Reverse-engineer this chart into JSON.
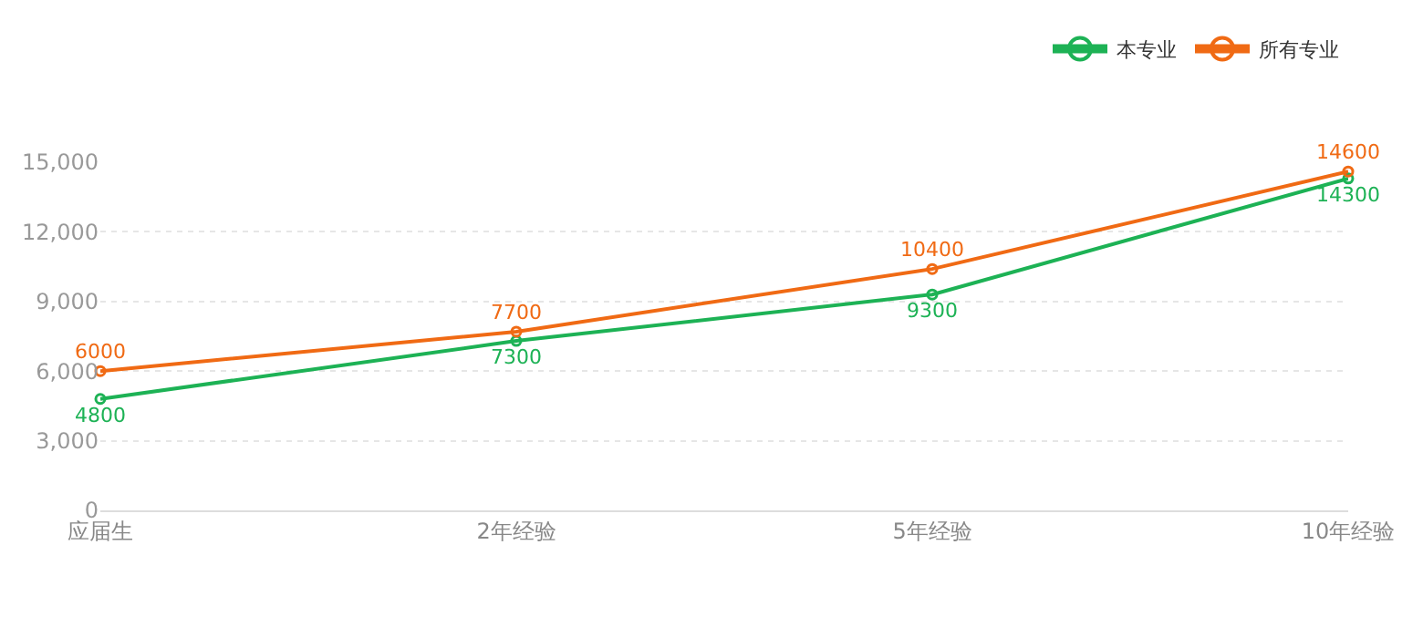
{
  "chart_data": {
    "type": "line",
    "categories": [
      "应届生",
      "2年经验",
      "5年经验",
      "10年经验"
    ],
    "series": [
      {
        "name": "本专业",
        "color": "#1db255",
        "values": [
          4800,
          7300,
          9300,
          14300
        ]
      },
      {
        "name": "所有专业",
        "color": "#f06a14",
        "values": [
          6000,
          7700,
          10400,
          14600
        ]
      }
    ],
    "ylim": [
      0,
      15000
    ],
    "yticks": [
      {
        "value": 0,
        "label": "0"
      },
      {
        "value": 3000,
        "label": "3,000"
      },
      {
        "value": 6000,
        "label": "6,000"
      },
      {
        "value": 9000,
        "label": "9,000"
      },
      {
        "value": 12000,
        "label": "12,000"
      },
      {
        "value": 15000,
        "label": "15,000"
      }
    ],
    "grid": "y",
    "legend": "top right",
    "marker": "circle",
    "line_style": "solid",
    "data_labels": true
  }
}
